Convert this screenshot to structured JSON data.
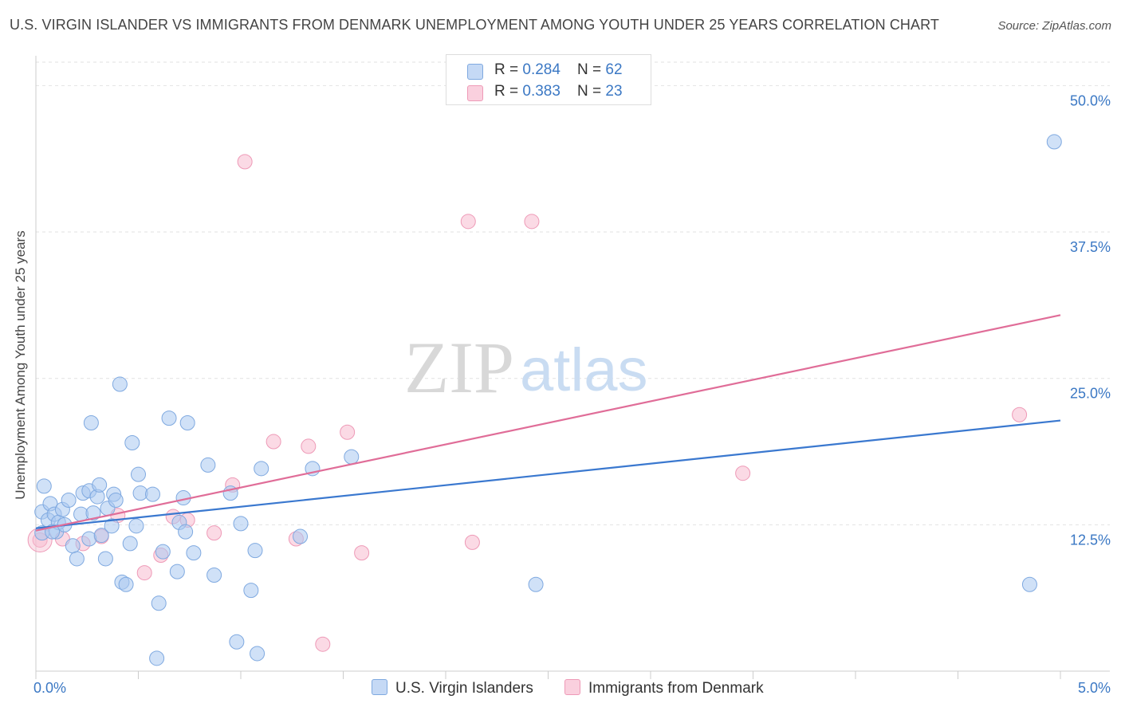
{
  "title": "U.S. VIRGIN ISLANDER VS IMMIGRANTS FROM DENMARK UNEMPLOYMENT AMONG YOUTH UNDER 25 YEARS CORRELATION CHART",
  "source": "Source: ZipAtlas.com",
  "watermark": {
    "zip": "ZIP",
    "atlas": "atlas"
  },
  "legend_top": [
    {
      "r_label": "R = ",
      "r_value": "0.284",
      "n_label": "N = ",
      "n_value": "62"
    },
    {
      "r_label": "R = ",
      "r_value": "0.383",
      "n_label": "N = ",
      "n_value": "23"
    }
  ],
  "chart_data": {
    "type": "scatter",
    "title": "U.S. VIRGIN ISLANDER VS IMMIGRANTS FROM DENMARK UNEMPLOYMENT AMONG YOUTH UNDER 25 YEARS CORRELATION CHART",
    "xlabel": "",
    "ylabel": "Unemployment Among Youth under 25 years",
    "xlim": [
      0,
      5.0
    ],
    "ylim": [
      0,
      52
    ],
    "x_tick_labels": [
      "0.0%",
      "5.0%"
    ],
    "y_ticks": [
      12.5,
      25.0,
      37.5,
      50.0
    ],
    "y_tick_labels": [
      "12.5%",
      "25.0%",
      "37.5%",
      "50.0%"
    ],
    "grid": true,
    "legend_position": "bottom",
    "colors": {
      "blue_fill": "#a9c8f0",
      "blue_stroke": "#7fa9e0",
      "blue_line": "#3a78cf",
      "pink_fill": "#f7bcd0",
      "pink_stroke": "#ee9ab7",
      "pink_line": "#e06d98",
      "value_text": "#3b78c4"
    },
    "series": [
      {
        "name": "U.S. Virgin Islanders",
        "color": "#a9c8f0",
        "trend": {
          "x": [
            0,
            5.0
          ],
          "y": [
            12.2,
            21.4
          ]
        },
        "points": [
          [
            0.03,
            13.6
          ],
          [
            0.04,
            15.8
          ],
          [
            0.07,
            14.3
          ],
          [
            0.06,
            12.9
          ],
          [
            0.09,
            13.4
          ],
          [
            0.1,
            11.9
          ],
          [
            0.11,
            12.7
          ],
          [
            0.13,
            13.8
          ],
          [
            0.14,
            12.5
          ],
          [
            0.16,
            14.6
          ],
          [
            0.18,
            10.7
          ],
          [
            0.2,
            9.6
          ],
          [
            0.22,
            13.4
          ],
          [
            0.23,
            15.2
          ],
          [
            0.26,
            11.3
          ],
          [
            0.26,
            15.4
          ],
          [
            0.27,
            21.2
          ],
          [
            0.28,
            13.5
          ],
          [
            0.3,
            14.9
          ],
          [
            0.31,
            15.9
          ],
          [
            0.32,
            11.6
          ],
          [
            0.34,
            9.6
          ],
          [
            0.35,
            13.9
          ],
          [
            0.37,
            12.4
          ],
          [
            0.38,
            15.1
          ],
          [
            0.39,
            14.6
          ],
          [
            0.41,
            24.5
          ],
          [
            0.42,
            7.6
          ],
          [
            0.44,
            7.4
          ],
          [
            0.46,
            10.9
          ],
          [
            0.47,
            19.5
          ],
          [
            0.49,
            12.4
          ],
          [
            0.5,
            16.8
          ],
          [
            0.51,
            15.2
          ],
          [
            0.57,
            15.1
          ],
          [
            0.59,
            1.1
          ],
          [
            0.6,
            5.8
          ],
          [
            0.62,
            10.2
          ],
          [
            0.65,
            21.6
          ],
          [
            0.69,
            8.5
          ],
          [
            0.7,
            12.7
          ],
          [
            0.72,
            14.8
          ],
          [
            0.73,
            11.9
          ],
          [
            0.74,
            21.2
          ],
          [
            0.77,
            10.1
          ],
          [
            0.84,
            17.6
          ],
          [
            0.87,
            8.2
          ],
          [
            0.95,
            15.2
          ],
          [
            0.98,
            2.5
          ],
          [
            1.0,
            12.6
          ],
          [
            1.05,
            6.9
          ],
          [
            1.07,
            10.3
          ],
          [
            1.08,
            1.5
          ],
          [
            1.1,
            17.3
          ],
          [
            1.29,
            11.5
          ],
          [
            1.35,
            17.3
          ],
          [
            1.54,
            18.3
          ],
          [
            2.44,
            7.4
          ],
          [
            4.85,
            7.4
          ],
          [
            4.97,
            45.2
          ],
          [
            0.03,
            11.8
          ],
          [
            0.08,
            11.9
          ]
        ]
      },
      {
        "name": "Immigrants from Denmark",
        "color": "#f7bcd0",
        "trend": {
          "x": [
            0,
            5.0
          ],
          "y": [
            12.0,
            30.4
          ]
        },
        "points": [
          [
            0.02,
            11.2
          ],
          [
            0.13,
            11.3
          ],
          [
            0.23,
            10.9
          ],
          [
            0.32,
            11.5
          ],
          [
            0.4,
            13.3
          ],
          [
            0.53,
            8.4
          ],
          [
            0.61,
            9.9
          ],
          [
            0.67,
            13.2
          ],
          [
            0.74,
            12.9
          ],
          [
            0.87,
            11.8
          ],
          [
            0.96,
            15.9
          ],
          [
            1.02,
            43.5
          ],
          [
            1.16,
            19.6
          ],
          [
            1.27,
            11.3
          ],
          [
            1.33,
            19.2
          ],
          [
            1.4,
            2.3
          ],
          [
            1.52,
            20.4
          ],
          [
            1.59,
            10.1
          ],
          [
            2.11,
            38.4
          ],
          [
            2.42,
            38.4
          ],
          [
            2.13,
            11.0
          ],
          [
            3.45,
            16.9
          ],
          [
            4.8,
            21.9
          ]
        ]
      }
    ]
  }
}
